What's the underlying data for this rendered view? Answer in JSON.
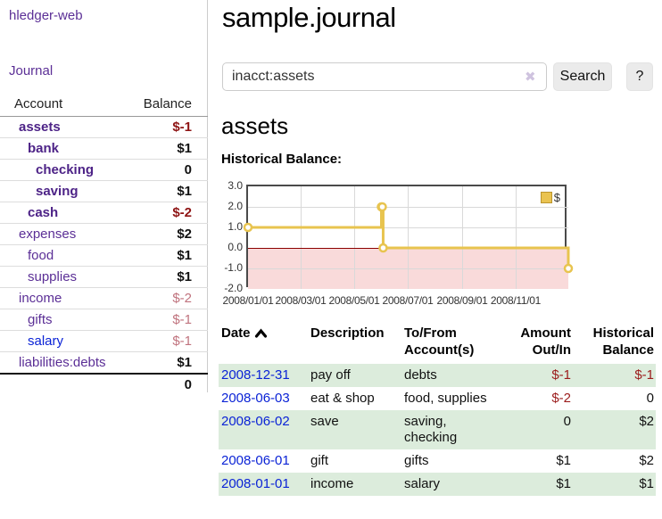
{
  "app": {
    "brand": "hledger-web"
  },
  "sidebar": {
    "nav": [
      {
        "label": "Journal"
      }
    ],
    "accounts_table": {
      "headers": [
        "Account",
        "Balance"
      ],
      "rows": [
        {
          "name": "assets",
          "indent": 1,
          "in_current_filter": true,
          "balance": "$-1"
        },
        {
          "name": "bank",
          "indent": 2,
          "in_current_filter": true,
          "balance": "$1"
        },
        {
          "name": "checking",
          "indent": 3,
          "in_current_filter": true,
          "balance": "0"
        },
        {
          "name": "saving",
          "indent": 3,
          "in_current_filter": true,
          "balance": "$1"
        },
        {
          "name": "cash",
          "indent": 2,
          "in_current_filter": true,
          "balance": "$-2"
        },
        {
          "name": "expenses",
          "indent": 1,
          "in_current_filter": false,
          "balance": "$2"
        },
        {
          "name": "food",
          "indent": 2,
          "in_current_filter": false,
          "balance": "$1"
        },
        {
          "name": "supplies",
          "indent": 2,
          "in_current_filter": false,
          "balance": "$1"
        },
        {
          "name": "income",
          "indent": 1,
          "in_current_filter": false,
          "balance": "$-2"
        },
        {
          "name": "gifts",
          "indent": 2,
          "in_current_filter": false,
          "balance": "$-1"
        },
        {
          "name": "salary",
          "indent": 2,
          "in_current_filter": false,
          "balance": "$-1",
          "unvisited": true
        },
        {
          "name": "liabilities:debts",
          "indent": 1,
          "in_current_filter": false,
          "balance": "$1"
        }
      ],
      "total": "0"
    }
  },
  "main": {
    "title": "sample.journal",
    "search": {
      "value": "inacct:assets",
      "clear_icon": "✖",
      "button": "Search",
      "help_button": "?"
    },
    "account_heading": "assets",
    "chart_heading": "Historical Balance:"
  },
  "chart_data": {
    "type": "line",
    "style": "step",
    "title": "Historical Balance:",
    "series": [
      {
        "name": "$",
        "points": [
          {
            "date": "2008-01-01",
            "value": 1
          },
          {
            "date": "2008-06-01",
            "value": 2
          },
          {
            "date": "2008-06-02",
            "value": 2
          },
          {
            "date": "2008-06-03",
            "value": 0
          },
          {
            "date": "2008-12-31",
            "value": -1
          }
        ]
      }
    ],
    "xlim": [
      "2008-01-01",
      "2008-12-31"
    ],
    "ylim": [
      -2,
      3
    ],
    "y_ticks": [
      "3.0",
      "2.0",
      "1.0",
      "0.0",
      "-1.0",
      "-2.0"
    ],
    "x_ticks": [
      "2008/01/01",
      "2008/03/01",
      "2008/05/01",
      "2008/07/01",
      "2008/09/01",
      "2008/11/01"
    ],
    "grid": true,
    "legend_position": "top-right",
    "negative_region": true
  },
  "transactions": {
    "columns": [
      "Date",
      "Description",
      "To/From Account(s)",
      "Amount Out/In",
      "Historical Balance"
    ],
    "rows": [
      {
        "date": "2008-12-31",
        "description": "pay off",
        "accounts": "debts",
        "amount": "$-1",
        "balance": "$-1"
      },
      {
        "date": "2008-06-03",
        "description": "eat & shop",
        "accounts": "food, supplies",
        "amount": "$-2",
        "balance": "0"
      },
      {
        "date": "2008-06-02",
        "description": "save",
        "accounts": "saving, checking",
        "amount": "0",
        "balance": "$2"
      },
      {
        "date": "2008-06-01",
        "description": "gift",
        "accounts": "gifts",
        "amount": "$1",
        "balance": "$2"
      },
      {
        "date": "2008-01-01",
        "description": "income",
        "accounts": "salary",
        "amount": "$1",
        "balance": "$1"
      }
    ]
  },
  "colors": {
    "accent_purple": "#5b2f96",
    "link_blue": "#0b23d6",
    "negative_strong": "#8e1414",
    "negative_soft": "#c0737e",
    "row_green": "#dcecdc",
    "chart_gold": "#e8c44f",
    "zero_line_red": "#8b0000",
    "negative_region_pink": "#f9dada"
  }
}
